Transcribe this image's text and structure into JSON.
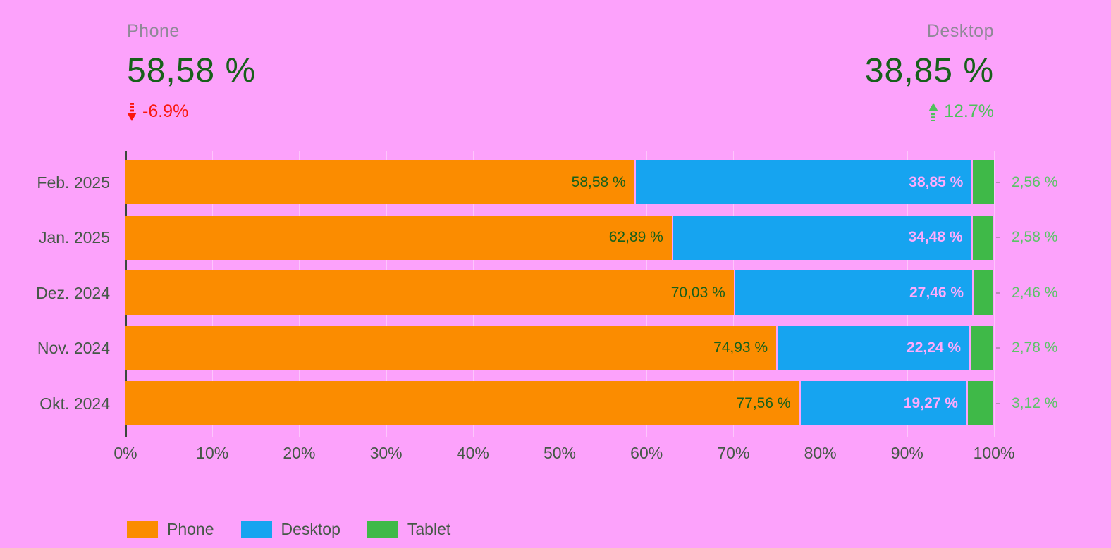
{
  "theme": {
    "background": "#FCA2FB",
    "phone_color": "#FB8C00",
    "desktop_color": "#16A4F0",
    "tablet_color": "#3FB948",
    "value_green": "#17601A",
    "positive_green": "#4EC15B",
    "negative_red": "#FA170C",
    "axis_text_color": "#445846",
    "kpi_title_gray": "#8F8997",
    "label_on_blue_pink": "#FFABFD",
    "tablet_label_green": "#5CC468"
  },
  "kpis": [
    {
      "label": "Phone",
      "value": "58,58 %",
      "change": "-6.9%",
      "direction": "down"
    },
    {
      "label": "Desktop",
      "value": "38,85 %",
      "change": "12.7%",
      "direction": "up"
    }
  ],
  "chart_data": {
    "type": "bar",
    "variant": "horizontal-stacked",
    "stacked": true,
    "grid": true,
    "categories": [
      "Feb. 2025",
      "Jan. 2025",
      "Dez. 2024",
      "Nov. 2024",
      "Okt. 2024"
    ],
    "series": [
      {
        "name": "Phone",
        "values": [
          58.58,
          62.89,
          70.03,
          74.93,
          77.56
        ],
        "labels": [
          "58,58 %",
          "62,89 %",
          "70,03 %",
          "74,93 %",
          "77,56 %"
        ]
      },
      {
        "name": "Desktop",
        "values": [
          38.85,
          34.48,
          27.46,
          22.24,
          19.27
        ],
        "labels": [
          "38,85 %",
          "34,48 %",
          "27,46 %",
          "22,24 %",
          "19,27 %"
        ]
      },
      {
        "name": "Tablet",
        "values": [
          2.56,
          2.58,
          2.46,
          2.78,
          3.12
        ],
        "labels": [
          "2,56 %",
          "2,58 %",
          "2,46 %",
          "2,78 %",
          "3,12 %"
        ]
      }
    ],
    "x_axis": {
      "min": 0,
      "max": 100,
      "tick_labels": [
        "0%",
        "10%",
        "20%",
        "30%",
        "40%",
        "50%",
        "60%",
        "70%",
        "80%",
        "90%",
        "100%"
      ]
    },
    "legend": {
      "position": "bottom",
      "items": [
        "Phone",
        "Desktop",
        "Tablet"
      ]
    }
  }
}
